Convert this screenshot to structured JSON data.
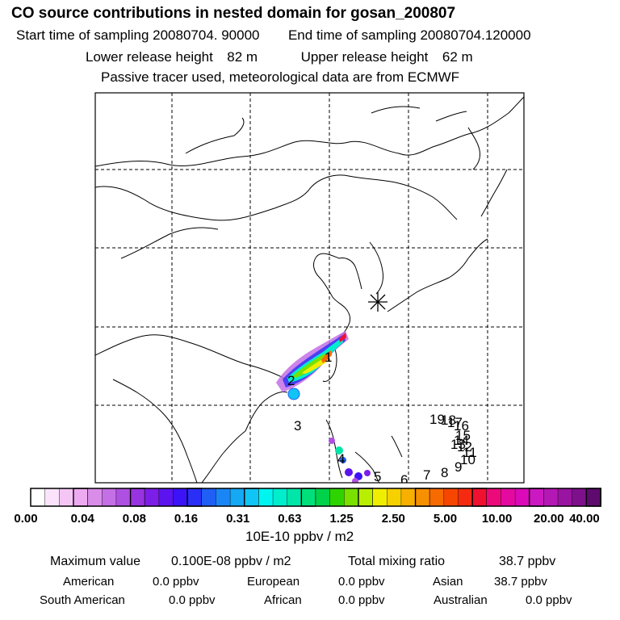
{
  "header": {
    "title": "CO  source contributions in nested domain for gosan_200807",
    "start_label": "Start time of sampling",
    "start_value": "20080704. 90000",
    "end_label": "End time of sampling",
    "end_value": "20080704.120000",
    "lower_label": "Lower release height",
    "lower_value": "82 m",
    "upper_label": "Upper release height",
    "upper_value": "62 m",
    "note": "Passive tracer used, meteorological data are from ECMWF"
  },
  "map": {
    "receptor_symbol": "asterisk",
    "region_labels": [
      "1",
      "2",
      "3",
      "4",
      "5",
      "6",
      "7",
      "8",
      "9",
      "10",
      "11",
      "12",
      "13",
      "14",
      "15",
      "16",
      "17",
      "18",
      "19"
    ]
  },
  "legend": {
    "ticks": [
      "0.00",
      "0.04",
      "0.08",
      "0.16",
      "0.31",
      "0.63",
      "1.25",
      "2.50",
      "5.00",
      "10.00",
      "20.00",
      "40.00"
    ],
    "colors": [
      "#ffffff",
      "#fbe4fb",
      "#f5c6f5",
      "#eeaaf0",
      "#d98ce8",
      "#c46fe5",
      "#ae50e2",
      "#9833e0",
      "#7d1ee8",
      "#5b14f0",
      "#3c12f7",
      "#2a2ff8",
      "#1f5ff5",
      "#1a86f5",
      "#14a8f5",
      "#10c4f5",
      "#00f5f0",
      "#00eecc",
      "#00e6a8",
      "#00e07a",
      "#00d24a",
      "#2ed400",
      "#7ae000",
      "#b8ee00",
      "#f0ee00",
      "#f7d000",
      "#f7b000",
      "#f79000",
      "#f76a00",
      "#f74600",
      "#f52a10",
      "#f01030",
      "#ec0a7a",
      "#e40aa0",
      "#da0ab8",
      "#cc18c2",
      "#b418b4",
      "#9a14a2",
      "#7e108c",
      "#5e0a6e"
    ],
    "units": "10E-10 ppbv / m2"
  },
  "stats": {
    "max_label": "Maximum value",
    "max_value": "0.100E-08 ppbv / m2",
    "total_label": "Total mixing ratio",
    "total_value": "38.7 ppbv",
    "regions": [
      {
        "name": "American",
        "value": "0.0 ppbv"
      },
      {
        "name": "European",
        "value": "0.0 ppbv"
      },
      {
        "name": "Asian",
        "value": "38.7 ppbv"
      },
      {
        "name": "South American",
        "value": "0.0 ppbv"
      },
      {
        "name": "African",
        "value": "0.0 ppbv"
      },
      {
        "name": "Australian",
        "value": "0.0 ppbv"
      }
    ]
  }
}
